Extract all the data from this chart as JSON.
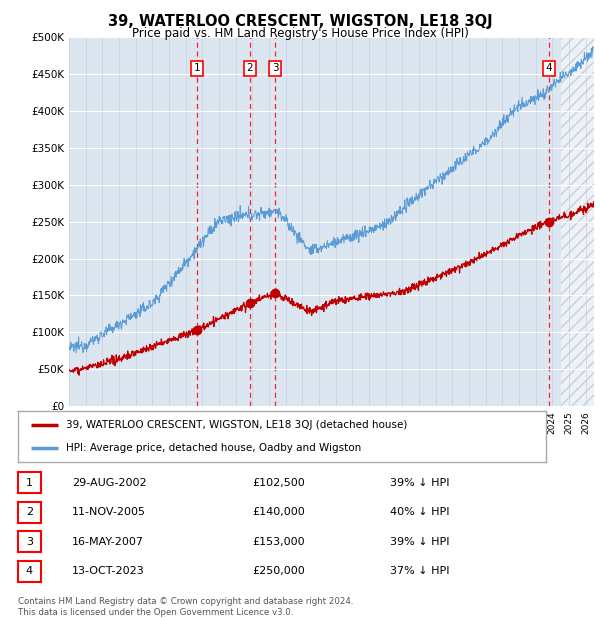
{
  "title": "39, WATERLOO CRESCENT, WIGSTON, LE18 3QJ",
  "subtitle": "Price paid vs. HM Land Registry's House Price Index (HPI)",
  "ylabel_ticks": [
    "£0",
    "£50K",
    "£100K",
    "£150K",
    "£200K",
    "£250K",
    "£300K",
    "£350K",
    "£400K",
    "£450K",
    "£500K"
  ],
  "ytick_values": [
    0,
    50000,
    100000,
    150000,
    200000,
    250000,
    300000,
    350000,
    400000,
    450000,
    500000
  ],
  "ylim": [
    0,
    500000
  ],
  "xlim_start": 1995.0,
  "xlim_end": 2026.5,
  "hpi_color": "#5b9bd5",
  "price_color": "#c00000",
  "background_color": "#dce6f1",
  "transactions": [
    {
      "label": "1",
      "date": "29-AUG-2002",
      "year": 2002.66,
      "price": 102500
    },
    {
      "label": "2",
      "date": "11-NOV-2005",
      "year": 2005.86,
      "price": 140000
    },
    {
      "label": "3",
      "date": "16-MAY-2007",
      "year": 2007.38,
      "price": 153000
    },
    {
      "label": "4",
      "date": "13-OCT-2023",
      "year": 2023.79,
      "price": 250000
    }
  ],
  "legend_red_label": "39, WATERLOO CRESCENT, WIGSTON, LE18 3QJ (detached house)",
  "legend_blue_label": "HPI: Average price, detached house, Oadby and Wigston",
  "footer": "Contains HM Land Registry data © Crown copyright and database right 2024.\nThis data is licensed under the Open Government Licence v3.0.",
  "table_rows": [
    [
      "1",
      "29-AUG-2002",
      "£102,500",
      "39% ↓ HPI"
    ],
    [
      "2",
      "11-NOV-2005",
      "£140,000",
      "40% ↓ HPI"
    ],
    [
      "3",
      "16-MAY-2007",
      "£153,000",
      "39% ↓ HPI"
    ],
    [
      "4",
      "13-OCT-2023",
      "£250,000",
      "37% ↓ HPI"
    ]
  ],
  "hatch_start_year": 2024.5
}
